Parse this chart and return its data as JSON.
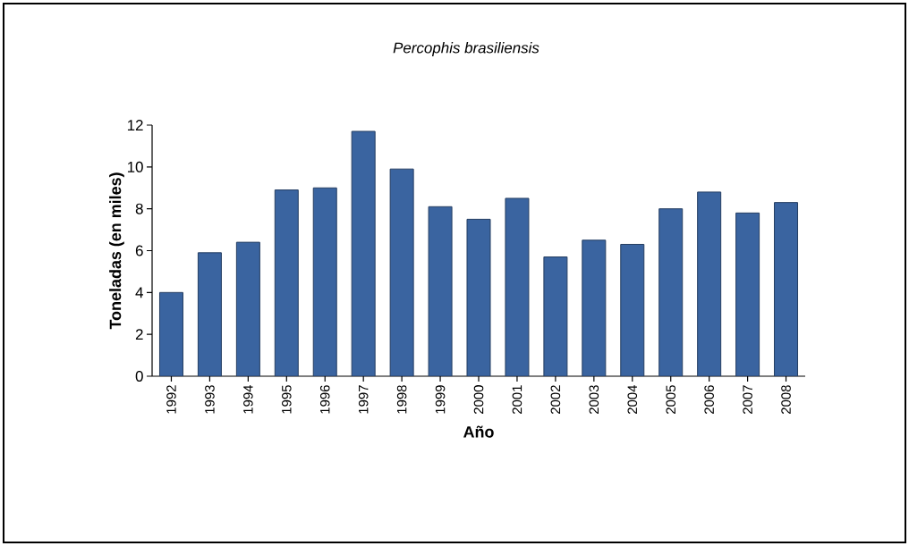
{
  "chart_data": {
    "type": "bar",
    "title": "Percophis brasiliensis",
    "xlabel": "Año",
    "ylabel": "Toneladas (en miles)",
    "categories": [
      "1992",
      "1993",
      "1994",
      "1995",
      "1996",
      "1997",
      "1998",
      "1999",
      "2000",
      "2001",
      "2002",
      "2003",
      "2004",
      "2005",
      "2006",
      "2007",
      "2008"
    ],
    "values": [
      4.0,
      5.9,
      6.4,
      8.9,
      9.0,
      11.7,
      9.9,
      8.1,
      7.5,
      8.5,
      5.7,
      6.5,
      6.3,
      8.0,
      8.8,
      7.8,
      8.3
    ],
    "color": "#3a64a0",
    "ylim": [
      0,
      12
    ],
    "yticks": [
      0,
      2,
      4,
      6,
      8,
      10,
      12
    ]
  }
}
